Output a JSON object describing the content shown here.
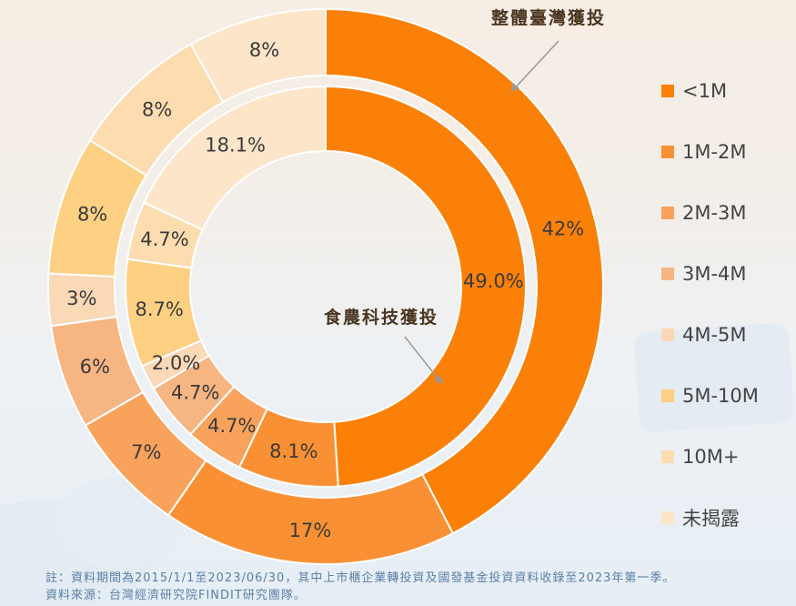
{
  "chart_data": {
    "type": "pie",
    "categories": [
      "<1M",
      "1M-2M",
      "2M-3M",
      "3M-4M",
      "4M-5M",
      "5M-10M",
      "10M+",
      "未揭露"
    ],
    "colors": [
      "#fb8008",
      "#f99134",
      "#f8a25c",
      "#f7b582",
      "#fbd8b6",
      "#fdd083",
      "#fddcb0",
      "#fde5c9"
    ],
    "series": [
      {
        "name": "整體臺灣獲投",
        "ring": "outer",
        "values": [
          42,
          17,
          7,
          6,
          3,
          8,
          8,
          8
        ],
        "labels": [
          "42%",
          "17%",
          "7%",
          "6%",
          "3%",
          "8%",
          "8%",
          "8%"
        ]
      },
      {
        "name": "食農科技獲投",
        "ring": "inner",
        "values": [
          49.0,
          8.1,
          4.7,
          4.7,
          2.0,
          8.7,
          4.7,
          18.1
        ],
        "labels": [
          "49.0%",
          "8.1%",
          "4.7%",
          "4.7%",
          "2.0%",
          "8.7%",
          "4.7%",
          "18.1%"
        ]
      }
    ],
    "legend": {
      "position": "right"
    }
  },
  "notes": {
    "line1": "註：資料期間為2015/1/1至2023/06/30，其中上市櫃企業轉投資及國發基金投資資料收錄至2023年第一季。",
    "line2": "資料來源：台灣經濟研究院FINDIT研究團隊。"
  }
}
